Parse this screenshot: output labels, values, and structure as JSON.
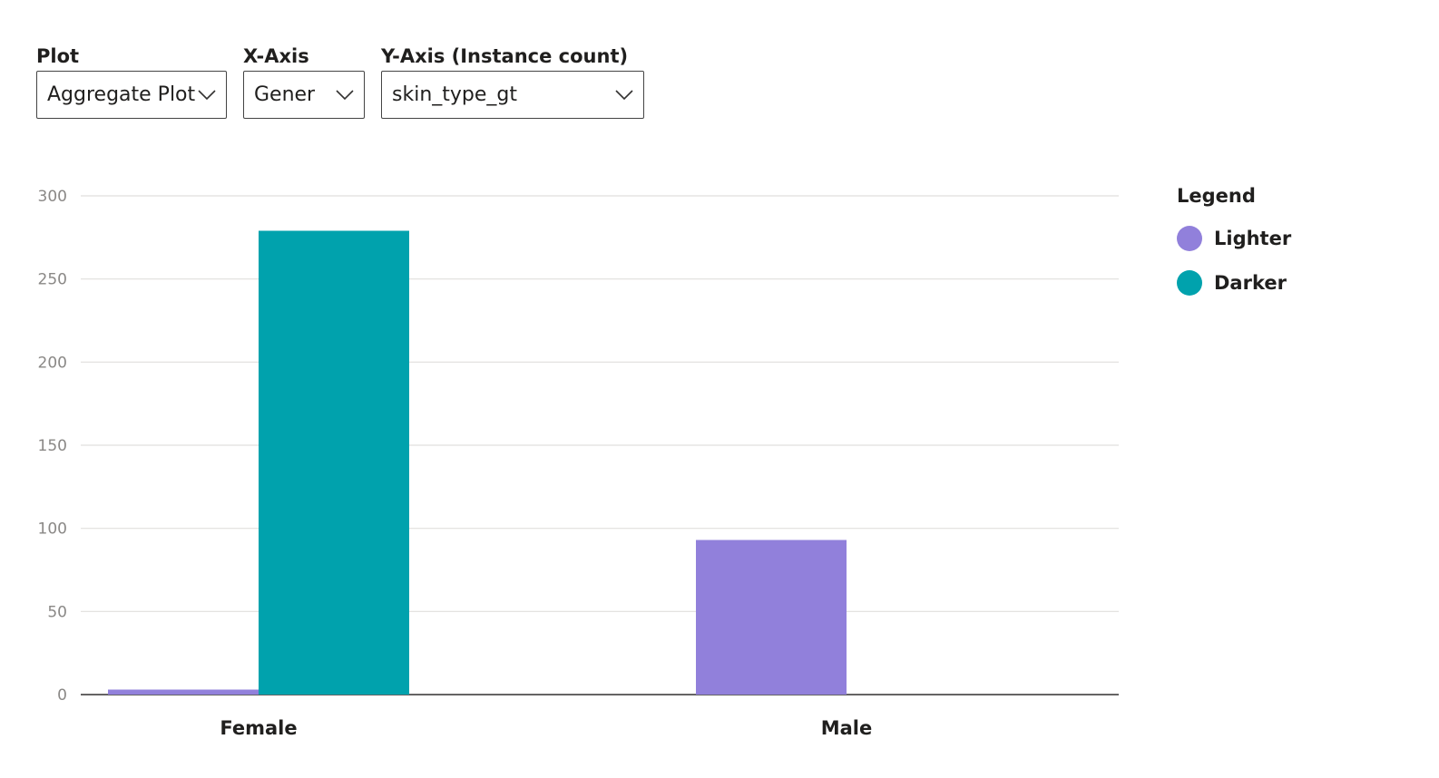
{
  "controls": {
    "plot": {
      "label": "Plot",
      "value": "Aggregate Plot"
    },
    "x_axis": {
      "label": "X-Axis",
      "value": "Gener"
    },
    "y_axis": {
      "label": "Y-Axis (Instance count)",
      "value": "skin_type_gt"
    }
  },
  "legend": {
    "title": "Legend",
    "items": [
      {
        "label": "Lighter",
        "color": "#9180db"
      },
      {
        "label": "Darker",
        "color": "#00a2ad"
      }
    ]
  },
  "chart_data": {
    "type": "bar",
    "categories": [
      "Female",
      "Male"
    ],
    "series": [
      {
        "name": "Lighter",
        "color": "#9180db",
        "values": [
          3,
          93
        ]
      },
      {
        "name": "Darker",
        "color": "#00a2ad",
        "values": [
          279,
          0
        ]
      }
    ],
    "xlabel": "",
    "ylabel": "",
    "ylim": [
      0,
      300
    ],
    "yticks": [
      0,
      50,
      100,
      150,
      200,
      250,
      300
    ],
    "grid": true,
    "legend_position": "right"
  }
}
